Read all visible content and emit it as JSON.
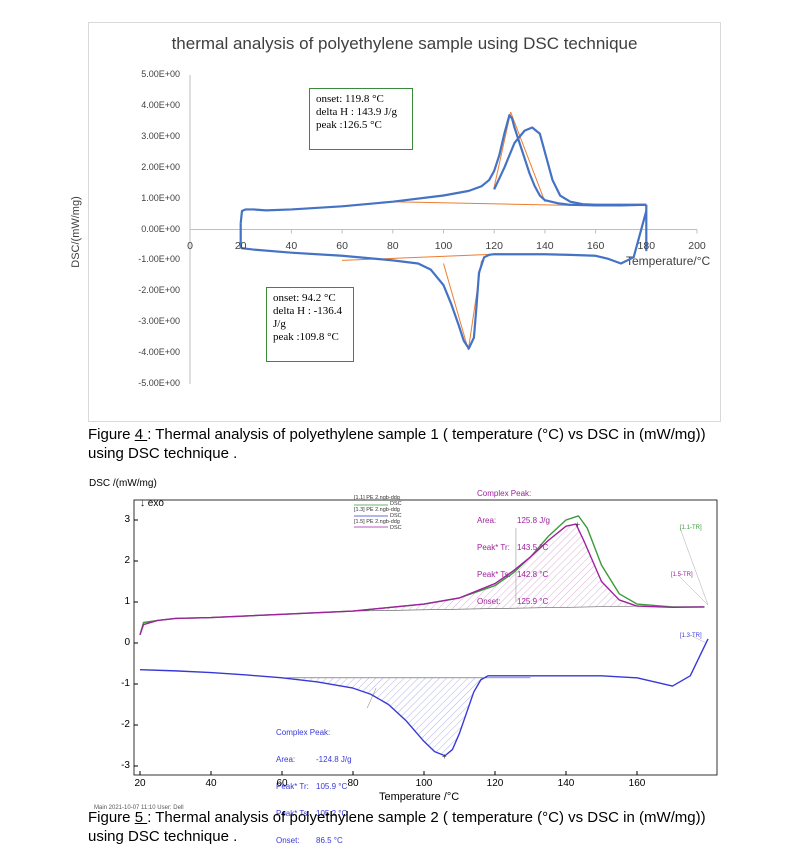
{
  "chart_data": [
    {
      "type": "line",
      "title": "thermal analysis of polyethylene sample using DSC technique",
      "ylabel": "DSC/(mW/mg)",
      "xlabel": "Temperature/°C",
      "xlim": [
        0,
        200
      ],
      "ylim": [
        -5.0,
        5.0
      ],
      "x_ticks": [
        "0",
        "20",
        "40",
        "60",
        "80",
        "100",
        "120",
        "140",
        "160",
        "180",
        "200"
      ],
      "y_ticks": [
        "5.00E+00",
        "4.00E+00",
        "3.00E+00",
        "2.00E+00",
        "1.00E+00",
        "0.00E+00",
        "-1.00E+00",
        "-2.00E+00",
        "-3.00E+00",
        "-4.00E+00",
        "-5.00E+00"
      ],
      "grid": false,
      "series": [
        {
          "name": "",
          "color": "#4472c4",
          "x": [
            20,
            20.5,
            22,
            25,
            30,
            40,
            60,
            80,
            100,
            110,
            115,
            118,
            120,
            122,
            124,
            126,
            127,
            128,
            130,
            132,
            134,
            136,
            138,
            140,
            145,
            150,
            160,
            170,
            180
          ],
          "y": [
            0.2,
            0.6,
            0.65,
            0.65,
            0.62,
            0.65,
            0.75,
            0.9,
            1.1,
            1.25,
            1.4,
            1.6,
            1.9,
            2.4,
            3.1,
            3.7,
            3.6,
            3.3,
            2.8,
            2.3,
            1.8,
            1.4,
            1.1,
            0.95,
            0.85,
            0.8,
            0.78,
            0.78,
            0.8
          ]
        },
        {
          "name": "",
          "color": "#4472c4",
          "x": [
            20,
            25,
            40,
            60,
            80,
            90,
            95,
            100,
            103,
            106,
            108,
            110,
            112,
            113,
            114,
            116,
            118,
            120,
            130,
            140,
            150,
            160,
            165,
            170,
            175,
            180
          ],
          "y": [
            -0.6,
            -0.65,
            -0.75,
            -0.85,
            -1.0,
            -1.1,
            -1.3,
            -1.8,
            -2.4,
            -3.1,
            -3.6,
            -3.85,
            -3.5,
            -2.5,
            -1.4,
            -0.9,
            -0.82,
            -0.8,
            -0.8,
            -0.8,
            -0.82,
            -0.85,
            -0.95,
            -1.1,
            -0.9,
            0.6
          ]
        },
        {
          "name": "",
          "color": "#4472c4",
          "x": [
            120,
            124,
            128,
            132,
            135,
            138,
            140,
            143,
            146,
            150,
            155,
            160,
            170,
            180
          ],
          "y": [
            1.3,
            2.0,
            2.8,
            3.2,
            3.3,
            3.1,
            2.5,
            1.6,
            1.1,
            0.9,
            0.82,
            0.8,
            0.8,
            0.8
          ]
        }
      ],
      "annotations": [
        {
          "lines": [
            "onset: 119.8 °C",
            "delta H : 143.9 J/g",
            "peak :126.5 °C"
          ]
        },
        {
          "lines": [
            "onset: 94.2 °C",
            "delta H : -136.4",
            "J/g",
            "peak :109.8 °C"
          ]
        }
      ]
    },
    {
      "type": "line",
      "title": "",
      "ylabel": "DSC /(mW/mg)",
      "xlabel": "Temperature /°C",
      "exo_label": "↓ exo",
      "xlim": [
        20,
        180
      ],
      "ylim": [
        -3,
        3
      ],
      "x_ticks": [
        "20",
        "40",
        "60",
        "80",
        "100",
        "120",
        "140",
        "160"
      ],
      "y_ticks": [
        "3",
        "2",
        "1",
        "0",
        "-1",
        "-2",
        "-3"
      ],
      "legend": [
        {
          "id": "[1.1] PE 2.ngb-ddg",
          "sub": "DSC"
        },
        {
          "id": "[1.3] PE 2.ngb-ddg",
          "sub": "DSC"
        },
        {
          "id": "[1.5] PE 2.ngb-ddg",
          "sub": "DSC"
        }
      ],
      "series": [
        {
          "name": "[1.1] PE 2.ngb-ddg",
          "color": "#3a9a3a",
          "x": [
            20,
            21,
            25,
            30,
            40,
            60,
            80,
            100,
            110,
            120,
            125,
            130,
            135,
            140,
            143.5,
            146,
            150,
            155,
            160,
            170,
            179
          ],
          "y": [
            0.2,
            0.5,
            0.55,
            0.6,
            0.62,
            0.7,
            0.78,
            0.95,
            1.1,
            1.4,
            1.7,
            2.1,
            2.6,
            3.0,
            3.1,
            2.8,
            1.9,
            1.2,
            0.95,
            0.88,
            0.88
          ]
        },
        {
          "name": "[1.5] PE 2.ngb-ddg",
          "color": "#a020a0",
          "x": [
            20,
            21,
            25,
            30,
            40,
            60,
            80,
            100,
            110,
            120,
            125,
            130,
            135,
            140,
            142.8,
            145,
            150,
            155,
            160,
            170,
            179
          ],
          "y": [
            0.2,
            0.45,
            0.55,
            0.6,
            0.62,
            0.7,
            0.78,
            0.95,
            1.1,
            1.45,
            1.75,
            2.1,
            2.5,
            2.85,
            2.9,
            2.5,
            1.5,
            1.05,
            0.9,
            0.87,
            0.88
          ]
        },
        {
          "name": "[1.3] PE 2.ngb-ddg",
          "color": "#3838d8",
          "x": [
            20,
            30,
            40,
            50,
            60,
            70,
            80,
            85,
            90,
            95,
            100,
            103,
            105.9,
            108,
            110,
            112,
            114,
            116,
            118,
            120,
            130,
            140,
            150,
            160,
            165,
            170,
            175,
            180
          ],
          "y": [
            -0.65,
            -0.68,
            -0.72,
            -0.78,
            -0.85,
            -0.95,
            -1.1,
            -1.25,
            -1.5,
            -1.9,
            -2.4,
            -2.65,
            -2.75,
            -2.6,
            -2.2,
            -1.7,
            -1.2,
            -0.9,
            -0.8,
            -0.8,
            -0.8,
            -0.8,
            -0.8,
            -0.85,
            -0.95,
            -1.05,
            -0.8,
            0.1
          ]
        }
      ],
      "curve_labels": [
        "[1.1-TR]",
        "[1.5-TR]",
        "[1.3-TR]"
      ],
      "peak_boxes": [
        {
          "title": "Complex Peak:",
          "rows": [
            {
              "label": "Area:",
              "value": "125.8 J/g"
            },
            {
              "label": "Peak* Tr:",
              "value": "143.5 °C"
            },
            {
              "label": "Peak* Ts:",
              "value": "142.8 °C"
            },
            {
              "label": "Onset:",
              "value": "125.9 °C"
            }
          ]
        },
        {
          "title": "Complex Peak:",
          "rows": [
            {
              "label": "Area:",
              "value": "-124.8 J/g"
            },
            {
              "label": "Peak* Tr:",
              "value": "105.9 °C"
            },
            {
              "label": "Peak* Ts:",
              "value": "105.2 °C"
            },
            {
              "label": "Onset:",
              "value": "86.5 °C"
            }
          ]
        }
      ]
    }
  ],
  "captions": {
    "fig4_num": "4 ",
    "fig4_prefix": "Figure ",
    "fig4_text": ": Thermal analysis of polyethylene sample 1 ( temperature  (°C) vs DSC in (mW/mg))  using DSC technique .",
    "fig5_num": "5 ",
    "fig5_prefix": "Figure ",
    "fig5_text": ": Thermal analysis of polyethylene sample 2 ( temperature  (°C) vs DSC in (mW/mg))  using DSC technique ."
  },
  "footer_small": "Main   2021-10-07 11:10   User: Dell"
}
